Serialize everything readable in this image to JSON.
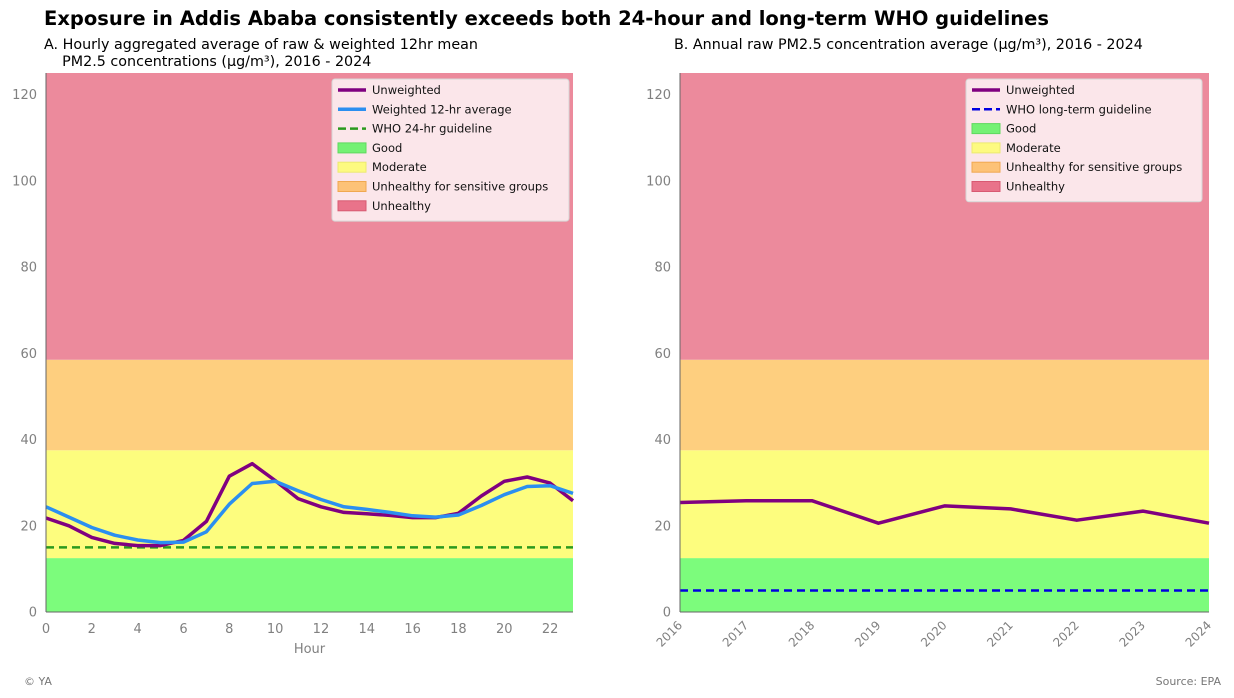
{
  "title": "Exposure in Addis Ababa consistently exceeds both 24-hour and long-term WHO guidelines",
  "footer": {
    "left": "© YA",
    "right": "Source: EPA"
  },
  "colors": {
    "good": "#7cfc7c",
    "moderate": "#fdfd7e",
    "usg": "#fecf7f",
    "unhealthy": "#ec8a9c",
    "unweighted": "#800080",
    "weighted": "#2b8ff0",
    "who24": "#2a9a1e",
    "wholong": "#0000e0"
  },
  "chart_data": [
    {
      "type": "line",
      "title": "A. Hourly aggregated average of raw & weighted 12hr mean\n    PM2.5 concentrations (µg/m³), 2016 - 2024",
      "xlabel": "Hour",
      "ylabel": "",
      "xlim": [
        0,
        23
      ],
      "ylim": [
        0,
        125
      ],
      "xticks": [
        0,
        2,
        4,
        6,
        8,
        10,
        12,
        14,
        16,
        18,
        20,
        22
      ],
      "yticks": [
        0,
        20,
        40,
        60,
        80,
        100,
        120
      ],
      "grid": false,
      "legend_position": "top-right",
      "bands": [
        {
          "name": "Good",
          "from": 0,
          "to": 12.5,
          "color": "#7cfc7c",
          "legend_color": "#74f174",
          "legend_edge": "#5fd95f"
        },
        {
          "name": "Moderate",
          "from": 12.5,
          "to": 37.5,
          "color": "#fdfd7e",
          "legend_color": "#fdfa80",
          "legend_edge": "#ecea70"
        },
        {
          "name": "Unhealthy for sensitive groups",
          "from": 37.5,
          "to": 58.5,
          "color": "#fecf7f",
          "legend_color": "#fdc277",
          "legend_edge": "#f0a850"
        },
        {
          "name": "Unhealthy",
          "from": 58.5,
          "to": 125,
          "color": "#ec8a9c",
          "legend_color": "#e9738a",
          "legend_edge": "#d85a72"
        }
      ],
      "x": [
        0,
        1,
        2,
        3,
        4,
        5,
        6,
        7,
        8,
        9,
        10,
        11,
        12,
        13,
        14,
        15,
        16,
        17,
        18,
        19,
        20,
        21,
        22,
        23
      ],
      "series": [
        {
          "name": "Unweighted",
          "color": "#800080",
          "width": 3.5,
          "values": [
            21.8,
            20.0,
            17.3,
            15.9,
            15.4,
            15.4,
            16.6,
            21.0,
            31.5,
            34.4,
            30.5,
            26.3,
            24.4,
            23.1,
            22.8,
            22.4,
            21.9,
            21.9,
            22.9,
            26.9,
            30.3,
            31.3,
            29.9,
            25.8
          ]
        },
        {
          "name": "Weighted 12-hr average",
          "color": "#2b8ff0",
          "width": 3.5,
          "values": [
            24.4,
            22.0,
            19.6,
            17.8,
            16.7,
            16.1,
            16.2,
            18.6,
            25.0,
            29.8,
            30.3,
            28.1,
            26.1,
            24.4,
            23.8,
            23.1,
            22.3,
            22.0,
            22.5,
            24.7,
            27.2,
            29.1,
            29.3,
            27.5
          ]
        }
      ],
      "guideline": {
        "name": "WHO 24-hr guideline",
        "value": 15,
        "color": "#2a9a1e"
      }
    },
    {
      "type": "line",
      "title": "B. Annual raw PM2.5 concentration average (µg/m³), 2016 - 2024",
      "xlabel": "",
      "ylabel": "",
      "xlim": [
        2016,
        2024
      ],
      "ylim": [
        0,
        125
      ],
      "xticks": [
        2016,
        2017,
        2018,
        2019,
        2020,
        2021,
        2022,
        2023,
        2024
      ],
      "yticks": [
        0,
        20,
        40,
        60,
        80,
        100,
        120
      ],
      "grid": false,
      "legend_position": "top-right",
      "bands": [
        {
          "name": "Good",
          "from": 0,
          "to": 12.5,
          "color": "#7cfc7c",
          "legend_color": "#74f174",
          "legend_edge": "#5fd95f"
        },
        {
          "name": "Moderate",
          "from": 12.5,
          "to": 37.5,
          "color": "#fdfd7e",
          "legend_color": "#fdfa80",
          "legend_edge": "#ecea70"
        },
        {
          "name": "Unhealthy for sensitive groups",
          "from": 37.5,
          "to": 58.5,
          "color": "#fecf7f",
          "legend_color": "#fdc277",
          "legend_edge": "#f0a850"
        },
        {
          "name": "Unhealthy",
          "from": 58.5,
          "to": 125,
          "color": "#ec8a9c",
          "legend_color": "#e9738a",
          "legend_edge": "#d85a72"
        }
      ],
      "x": [
        2016,
        2017,
        2018,
        2019,
        2020,
        2021,
        2022,
        2023,
        2024
      ],
      "series": [
        {
          "name": "Unweighted",
          "color": "#800080",
          "width": 3.5,
          "values": [
            25.4,
            25.8,
            25.8,
            20.6,
            24.6,
            23.9,
            21.3,
            23.4,
            20.6
          ]
        }
      ],
      "guideline": {
        "name": "WHO long-term guideline",
        "value": 5,
        "color": "#0000e0"
      }
    }
  ]
}
